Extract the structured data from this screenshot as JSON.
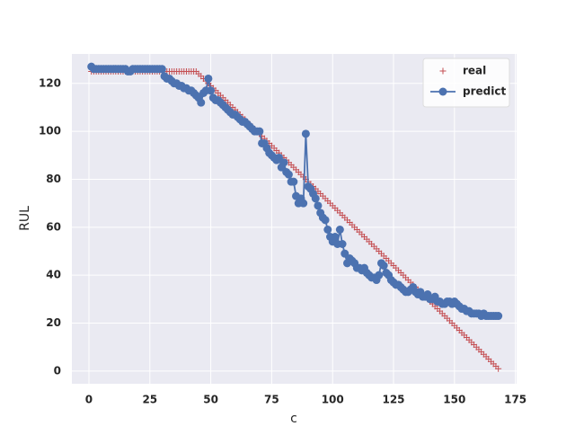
{
  "chart_data": {
    "type": "line",
    "xlabel": "c",
    "ylabel": "RUL",
    "x": [
      1,
      2,
      3,
      4,
      5,
      6,
      7,
      8,
      9,
      10,
      11,
      12,
      13,
      14,
      15,
      16,
      17,
      18,
      19,
      20,
      21,
      22,
      23,
      24,
      25,
      26,
      27,
      28,
      29,
      30,
      31,
      32,
      33,
      34,
      35,
      36,
      37,
      38,
      39,
      40,
      41,
      42,
      43,
      44,
      45,
      46,
      47,
      48,
      49,
      50,
      51,
      52,
      53,
      54,
      55,
      56,
      57,
      58,
      59,
      60,
      61,
      62,
      63,
      64,
      65,
      66,
      67,
      68,
      69,
      70,
      71,
      72,
      73,
      74,
      75,
      76,
      77,
      78,
      79,
      80,
      81,
      82,
      83,
      84,
      85,
      86,
      87,
      88,
      89,
      90,
      91,
      92,
      93,
      94,
      95,
      96,
      97,
      98,
      99,
      100,
      101,
      102,
      103,
      104,
      105,
      106,
      107,
      108,
      109,
      110,
      111,
      112,
      113,
      114,
      115,
      116,
      117,
      118,
      119,
      120,
      121,
      122,
      123,
      124,
      125,
      126,
      127,
      128,
      129,
      130,
      131,
      132,
      133,
      134,
      135,
      136,
      137,
      138,
      139,
      140,
      141,
      142,
      143,
      144,
      145,
      146,
      147,
      148,
      149,
      150,
      151,
      152,
      153,
      154,
      155,
      156,
      157,
      158,
      159,
      160,
      161,
      162,
      163,
      164,
      165,
      166,
      167,
      168
    ],
    "series": [
      {
        "name": "real",
        "color": "#c44e52",
        "marker": "plus",
        "values": [
          125,
          125,
          125,
          125,
          125,
          125,
          125,
          125,
          125,
          125,
          125,
          125,
          125,
          125,
          125,
          125,
          125,
          125,
          125,
          125,
          125,
          125,
          125,
          125,
          125,
          125,
          125,
          125,
          125,
          125,
          125,
          125,
          125,
          125,
          125,
          125,
          125,
          125,
          125,
          125,
          125,
          125,
          125,
          125,
          124,
          123,
          122,
          121,
          120,
          119,
          118,
          117,
          116,
          115,
          114,
          113,
          112,
          111,
          110,
          109,
          108,
          107,
          106,
          105,
          104,
          103,
          102,
          101,
          100,
          99,
          98,
          97,
          96,
          95,
          94,
          93,
          92,
          91,
          90,
          89,
          88,
          87,
          86,
          85,
          84,
          83,
          82,
          81,
          80,
          79,
          78,
          77,
          76,
          75,
          74,
          73,
          72,
          71,
          70,
          69,
          68,
          67,
          66,
          65,
          64,
          63,
          62,
          61,
          60,
          59,
          58,
          57,
          56,
          55,
          54,
          53,
          52,
          51,
          50,
          49,
          48,
          47,
          46,
          45,
          44,
          43,
          42,
          41,
          40,
          39,
          38,
          37,
          36,
          35,
          34,
          33,
          32,
          31,
          30,
          29,
          28,
          27,
          26,
          25,
          24,
          23,
          22,
          21,
          20,
          19,
          18,
          17,
          16,
          15,
          14,
          13,
          12,
          11,
          10,
          9,
          8,
          7,
          6,
          5,
          4,
          3,
          2,
          1
        ]
      },
      {
        "name": "predict",
        "color": "#4c72b0",
        "marker": "circle",
        "values": [
          127,
          126,
          126,
          126,
          126,
          126,
          126,
          126,
          126,
          126,
          126,
          126,
          126,
          126,
          126,
          125,
          125,
          126,
          126,
          126,
          126,
          126,
          126,
          126,
          126,
          126,
          126,
          126,
          126,
          126,
          123,
          122,
          122,
          121,
          120,
          120,
          119,
          119,
          118,
          118,
          117,
          117,
          116,
          115,
          114,
          112,
          116,
          117,
          122,
          117,
          114,
          113,
          113,
          112,
          111,
          110,
          109,
          108,
          107,
          107,
          106,
          105,
          104,
          104,
          103,
          102,
          101,
          100,
          100,
          100,
          95,
          95,
          93,
          91,
          90,
          89,
          88,
          89,
          85,
          87,
          83,
          82,
          79,
          79,
          73,
          70,
          72,
          70,
          99,
          77,
          76,
          74,
          72,
          69,
          66,
          64,
          63,
          59,
          56,
          54,
          56,
          53,
          59,
          53,
          49,
          45,
          47,
          46,
          45,
          43,
          43,
          42,
          43,
          41,
          40,
          39,
          39,
          38,
          40,
          45,
          44,
          41,
          40,
          38,
          37,
          36,
          36,
          35,
          34,
          33,
          33,
          34,
          35,
          33,
          32,
          33,
          31,
          31,
          32,
          30,
          30,
          31,
          29,
          29,
          28,
          28,
          29,
          29,
          28,
          29,
          28,
          27,
          26,
          26,
          25,
          25,
          24,
          24,
          24,
          24,
          23,
          24,
          23,
          23,
          23,
          23,
          23,
          23
        ]
      }
    ],
    "xlim": [
      -7,
      175.5
    ],
    "ylim": [
      -5.3,
      132.3
    ],
    "xticks": [
      0,
      25,
      50,
      75,
      100,
      125,
      150,
      175
    ],
    "yticks": [
      0,
      20,
      40,
      60,
      80,
      100,
      120
    ],
    "grid": true,
    "legend": "upper right"
  }
}
